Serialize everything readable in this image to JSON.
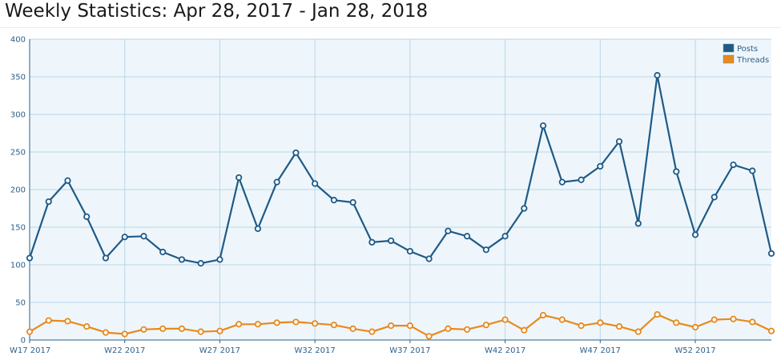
{
  "page": {
    "title": "Weekly Statistics: Apr 28, 2017 - Jan 28, 2018"
  },
  "colors": {
    "posts": "#1f5a87",
    "threads": "#e8891e",
    "plot_bg": "#eef6fb",
    "grid": "#b9d6e6",
    "axis": "#2c5f8a"
  },
  "chart_data": {
    "type": "line",
    "title": "Weekly Statistics: Apr 28, 2017 - Jan 28, 2018",
    "xlabel": "",
    "ylabel": "",
    "ylim": [
      0,
      400
    ],
    "yticks": [
      0,
      50,
      100,
      150,
      200,
      250,
      300,
      350,
      400
    ],
    "x_ticks": [
      {
        "index": 0,
        "label": "W17 2017"
      },
      {
        "index": 5,
        "label": "W22 2017"
      },
      {
        "index": 10,
        "label": "W27 2017"
      },
      {
        "index": 15,
        "label": "W32 2017"
      },
      {
        "index": 20,
        "label": "W37 2017"
      },
      {
        "index": 25,
        "label": "W42 2017"
      },
      {
        "index": 30,
        "label": "W47 2017"
      },
      {
        "index": 35,
        "label": "W52 2017"
      }
    ],
    "grid": true,
    "legend": "top-right",
    "series": [
      {
        "name": "Posts",
        "values": [
          109,
          184,
          212,
          164,
          109,
          137,
          138,
          117,
          107,
          102,
          107,
          216,
          148,
          210,
          249,
          208,
          186,
          183,
          130,
          132,
          118,
          108,
          145,
          138,
          120,
          138,
          175,
          285,
          210,
          213,
          231,
          264,
          155,
          352,
          224,
          140,
          190,
          233,
          225,
          115
        ]
      },
      {
        "name": "Threads",
        "values": [
          11,
          26,
          25,
          18,
          10,
          8,
          14,
          15,
          15,
          11,
          12,
          21,
          21,
          23,
          24,
          22,
          20,
          15,
          11,
          19,
          19,
          5,
          15,
          14,
          20,
          27,
          13,
          33,
          27,
          19,
          23,
          18,
          11,
          34,
          23,
          17,
          27,
          28,
          24,
          12
        ]
      }
    ]
  }
}
